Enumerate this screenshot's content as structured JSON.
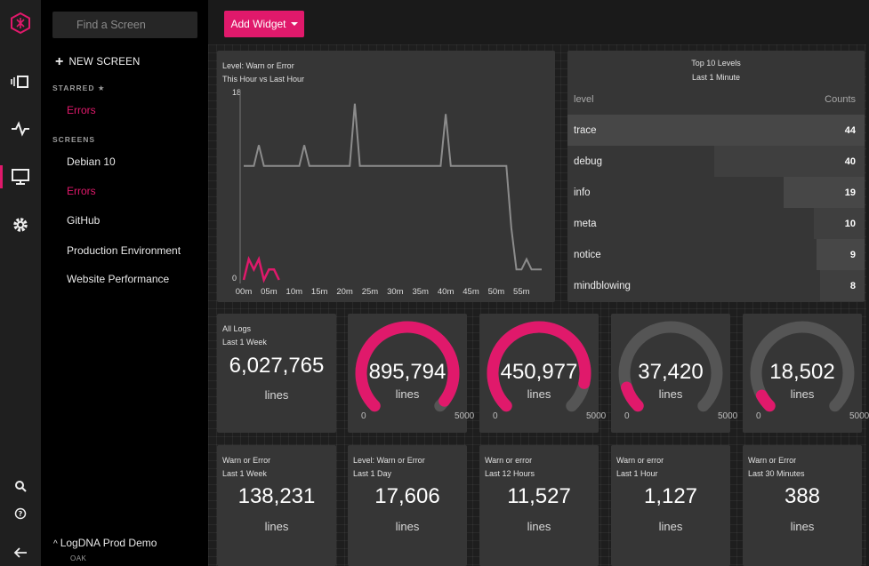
{
  "app": {
    "org_name": "LogDNA Prod Demo",
    "org_sub": "OAK"
  },
  "rail": {
    "icons": [
      "logo-icon",
      "boards-icon",
      "pulse-icon",
      "screens-icon",
      "settings-icon",
      "search-icon",
      "help-icon",
      "collapse-icon"
    ],
    "accent": "#e0196b"
  },
  "sidebar": {
    "search_placeholder": "Find a Screen",
    "new_screen_label": "NEW SCREEN",
    "starred_label": "STARRED ★",
    "starred": [
      "Errors"
    ],
    "screens_label": "SCREENS",
    "screens": [
      "Debian 10",
      "Errors",
      "GitHub",
      "Production Environment",
      "Website Performance"
    ]
  },
  "toolbar": {
    "add_widget_label": "Add Widget"
  },
  "line_widget": {
    "title": "Level: Warn or Error",
    "subtitle": "This Hour vs Last Hour",
    "chart_data": {
      "type": "line",
      "ylim": [
        0,
        18
      ],
      "y_ticks": [
        "18",
        "0"
      ],
      "x_ticks": [
        "00m",
        "05m",
        "10m",
        "15m",
        "20m",
        "25m",
        "30m",
        "35m",
        "40m",
        "45m",
        "50m",
        "55m"
      ],
      "series": [
        {
          "color": "#8c8c8c",
          "x": [
            0,
            1,
            2,
            3,
            4,
            5,
            6,
            7,
            8,
            9,
            10,
            11,
            12,
            13,
            14,
            15,
            16,
            17,
            18,
            19,
            20,
            21,
            22,
            23,
            24,
            25,
            26,
            27,
            28,
            29,
            30,
            31,
            32,
            33,
            34,
            35,
            36,
            37,
            38,
            39,
            40,
            41,
            42,
            43,
            44,
            45,
            46,
            47,
            48,
            49,
            50,
            51,
            52,
            53,
            54,
            55,
            56,
            57,
            58,
            59
          ],
          "values": [
            11,
            11,
            11,
            13,
            11,
            11,
            11,
            11,
            11,
            11,
            11,
            11,
            13,
            11,
            11,
            11,
            11,
            11,
            11,
            11,
            11,
            11,
            17,
            11,
            11,
            11,
            11,
            11,
            11,
            11,
            11,
            11,
            11,
            11,
            11,
            11,
            11,
            11,
            11,
            11,
            16,
            11,
            11,
            11,
            11,
            11,
            11,
            11,
            11,
            11,
            11,
            11,
            11,
            5,
            1,
            1,
            2,
            1,
            1,
            1
          ]
        },
        {
          "color": "#e0196b",
          "x": [
            0,
            1,
            2,
            3,
            4,
            5,
            6,
            7
          ],
          "values": [
            0,
            2,
            1,
            2,
            0,
            1,
            1,
            0
          ]
        }
      ]
    }
  },
  "top_levels": {
    "title": "Top 10 Levels",
    "subtitle": "Last 1 Minute",
    "col_level": "level",
    "col_counts": "Counts",
    "rows": [
      {
        "level": "trace",
        "count": 44
      },
      {
        "level": "debug",
        "count": 40
      },
      {
        "level": "info",
        "count": 19
      },
      {
        "level": "meta",
        "count": 10
      },
      {
        "level": "notice",
        "count": 9
      },
      {
        "level": "mindblowing",
        "count": 8
      }
    ]
  },
  "all_logs": {
    "title": "All Logs",
    "subtitle": "Last 1 Week",
    "value": "6,027,765",
    "unit": "lines"
  },
  "gauges": [
    {
      "value": "895,794",
      "unit": "lines",
      "min": "0",
      "max": "5000",
      "fraction": 0.97,
      "color": "#e0196b"
    },
    {
      "value": "450,977",
      "unit": "lines",
      "min": "0",
      "max": "5000",
      "fraction": 0.88,
      "color": "#e0196b"
    },
    {
      "value": "37,420",
      "unit": "lines",
      "min": "0",
      "max": "5000",
      "fraction": 0.1,
      "color": "#e0196b"
    },
    {
      "value": "18,502",
      "unit": "lines",
      "min": "0",
      "max": "5000",
      "fraction": 0.06,
      "color": "#e0196b"
    }
  ],
  "counters": [
    {
      "title": "Warn or Error",
      "subtitle": "Last 1 Week",
      "value": "138,231",
      "unit": "lines"
    },
    {
      "title": "Level: Warn or Error",
      "subtitle": "Last 1 Day",
      "value": "17,606",
      "unit": "lines"
    },
    {
      "title": "Warn or error",
      "subtitle": "Last 12 Hours",
      "value": "11,527",
      "unit": "lines"
    },
    {
      "title": "Warn or error",
      "subtitle": "Last 1 Hour",
      "value": "1,127",
      "unit": "lines"
    },
    {
      "title": "Warn or Error",
      "subtitle": "Last 30 Minutes",
      "value": "388",
      "unit": "lines"
    }
  ]
}
